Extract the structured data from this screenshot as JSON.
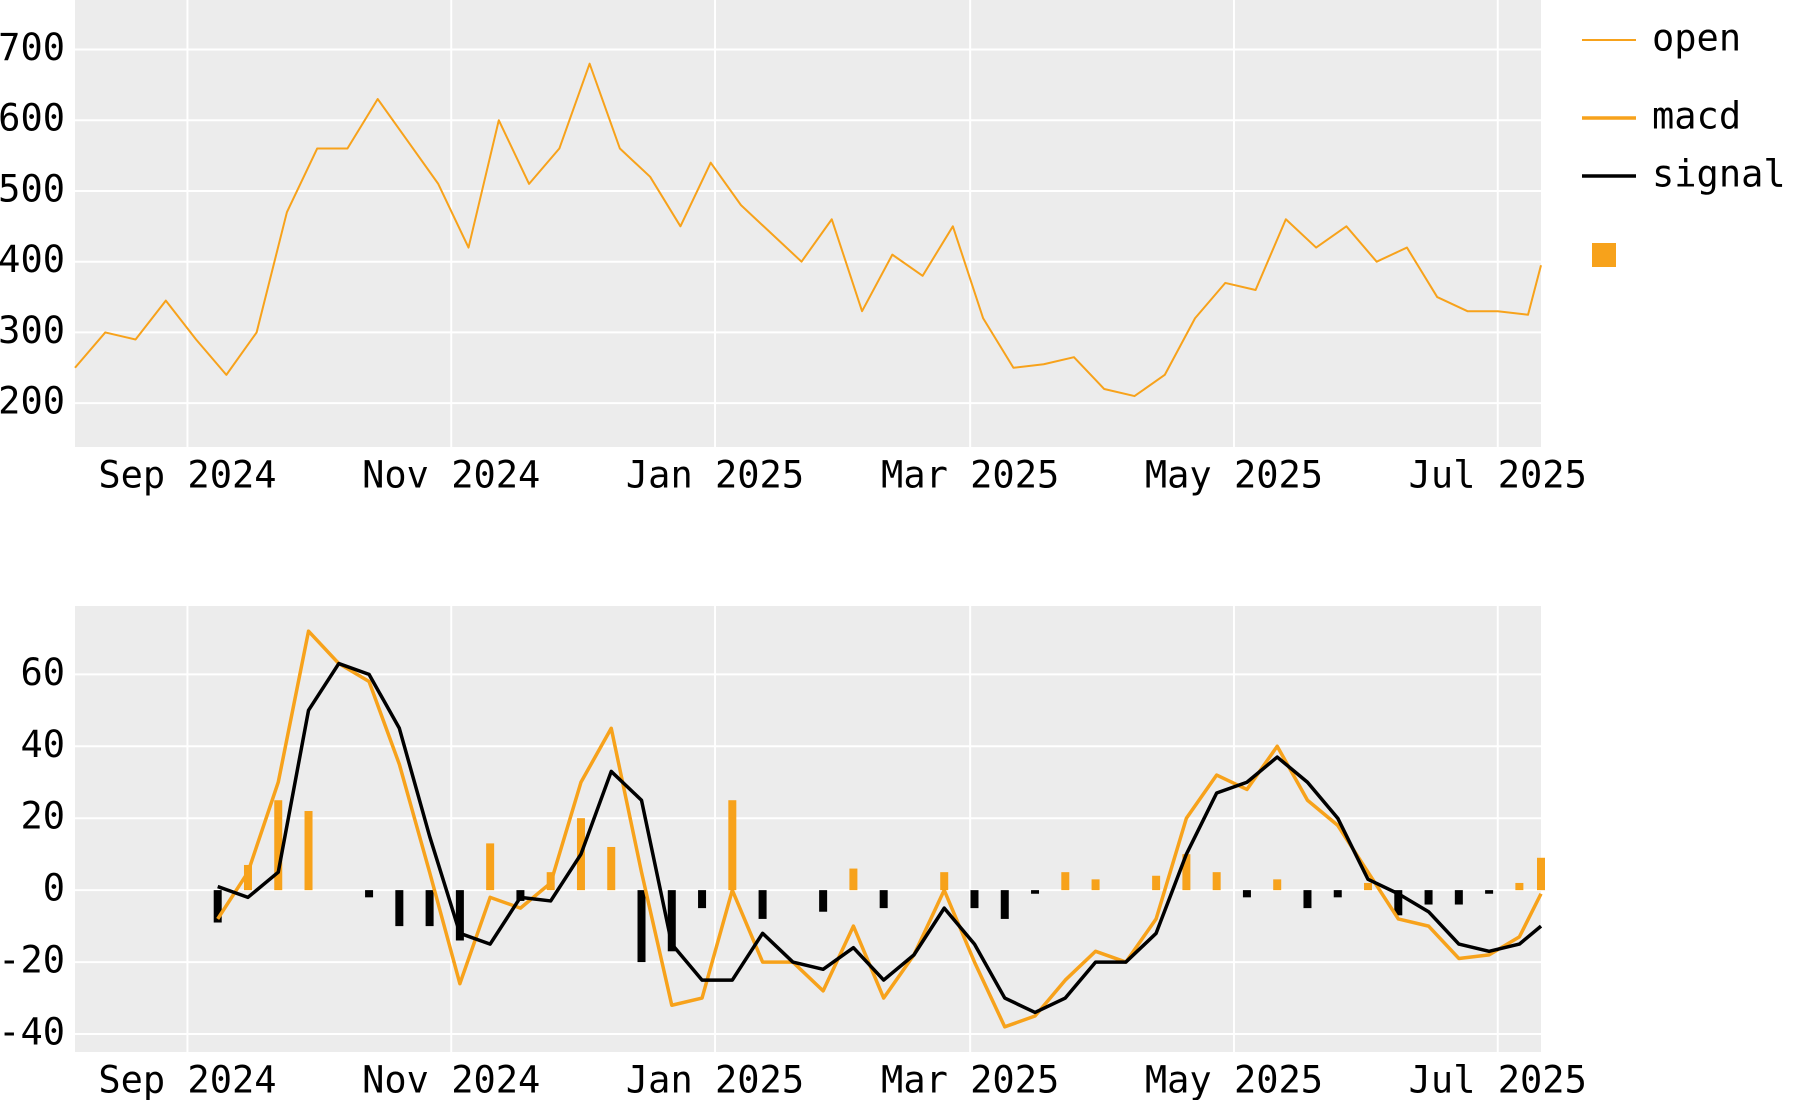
{
  "chart_data": [
    {
      "type": "line",
      "x": [
        "2024-08-06",
        "2024-08-13",
        "2024-08-20",
        "2024-08-27",
        "2024-09-03",
        "2024-09-10",
        "2024-09-17",
        "2024-09-24",
        "2024-10-01",
        "2024-10-08",
        "2024-10-15",
        "2024-10-22",
        "2024-10-29",
        "2024-11-05",
        "2024-11-12",
        "2024-11-19",
        "2024-11-26",
        "2024-12-03",
        "2024-12-10",
        "2024-12-17",
        "2024-12-24",
        "2024-12-31",
        "2025-01-07",
        "2025-01-14",
        "2025-01-21",
        "2025-01-28",
        "2025-02-04",
        "2025-02-11",
        "2025-02-18",
        "2025-02-25",
        "2025-03-04",
        "2025-03-11",
        "2025-03-18",
        "2025-03-25",
        "2025-04-01",
        "2025-04-08",
        "2025-04-15",
        "2025-04-22",
        "2025-04-29",
        "2025-05-06",
        "2025-05-13",
        "2025-05-20",
        "2025-05-27",
        "2025-06-03",
        "2025-06-10",
        "2025-06-17",
        "2025-06-24",
        "2025-07-01",
        "2025-07-08",
        "2025-07-11"
      ],
      "series": [
        {
          "name": "open",
          "color": "#f7a21b",
          "width": 2,
          "values": [
            250,
            300,
            290,
            345,
            290,
            240,
            300,
            470,
            560,
            560,
            630,
            570,
            510,
            420,
            600,
            510,
            560,
            680,
            560,
            520,
            450,
            540,
            480,
            440,
            400,
            460,
            330,
            410,
            380,
            450,
            320,
            250,
            255,
            265,
            220,
            210,
            240,
            320,
            370,
            360,
            460,
            420,
            450,
            400,
            420,
            350,
            330,
            330,
            325,
            395
          ]
        }
      ],
      "xlim": [
        "2024-08-06",
        "2025-07-11"
      ],
      "xticks": [
        {
          "value": "2024-09-01",
          "label": "Sep 2024"
        },
        {
          "value": "2024-11-01",
          "label": "Nov 2024"
        },
        {
          "value": "2025-01-01",
          "label": "Jan 2025"
        },
        {
          "value": "2025-03-01",
          "label": "Mar 2025"
        },
        {
          "value": "2025-05-01",
          "label": "May 2025"
        },
        {
          "value": "2025-07-01",
          "label": "Jul 2025"
        }
      ],
      "ylim": [
        138,
        770
      ],
      "yticks": [
        200,
        300,
        400,
        500,
        600,
        700
      ],
      "grid": true
    },
    {
      "type": "line",
      "x": [
        "2024-09-08",
        "2024-09-15",
        "2024-09-22",
        "2024-09-29",
        "2024-10-06",
        "2024-10-13",
        "2024-10-20",
        "2024-10-27",
        "2024-11-03",
        "2024-11-10",
        "2024-11-17",
        "2024-11-24",
        "2024-12-01",
        "2024-12-08",
        "2024-12-15",
        "2024-12-22",
        "2024-12-29",
        "2025-01-05",
        "2025-01-12",
        "2025-01-19",
        "2025-01-26",
        "2025-02-02",
        "2025-02-09",
        "2025-02-16",
        "2025-02-23",
        "2025-03-02",
        "2025-03-09",
        "2025-03-16",
        "2025-03-23",
        "2025-03-30",
        "2025-04-06",
        "2025-04-13",
        "2025-04-20",
        "2025-04-27",
        "2025-05-04",
        "2025-05-11",
        "2025-05-18",
        "2025-05-25",
        "2025-06-01",
        "2025-06-08",
        "2025-06-15",
        "2025-06-22",
        "2025-06-29",
        "2025-07-06",
        "2025-07-11"
      ],
      "series": [
        {
          "name": "macd",
          "color": "#f7a21b",
          "width": 3.5,
          "values": [
            -8,
            5,
            30,
            72,
            63,
            58,
            35,
            5,
            -26,
            -2,
            -5,
            2,
            30,
            45,
            5,
            -32,
            -30,
            0,
            -20,
            -20,
            -28,
            -10,
            -30,
            -18,
            0,
            -20,
            -38,
            -35,
            -25,
            -17,
            -20,
            -8,
            20,
            32,
            28,
            40,
            25,
            18,
            5,
            -8,
            -10,
            -19,
            -18,
            -13,
            -1
          ]
        },
        {
          "name": "signal",
          "color": "#000000",
          "width": 3.5,
          "values": [
            1,
            -2,
            5,
            50,
            63,
            60,
            45,
            15,
            -12,
            -15,
            -2,
            -3,
            10,
            33,
            25,
            -15,
            -25,
            -25,
            -12,
            -20,
            -22,
            -16,
            -25,
            -18,
            -5,
            -15,
            -30,
            -34,
            -30,
            -20,
            -20,
            -12,
            10,
            27,
            30,
            37,
            30,
            20,
            3,
            -1,
            -6,
            -15,
            -17,
            -15,
            -10
          ]
        }
      ],
      "histogram": {
        "colors": {
          "positive": "#f7a21b",
          "negative": "#000000"
        },
        "values": [
          -9,
          7,
          25,
          22,
          0,
          -2,
          -10,
          -10,
          -14,
          13,
          -3,
          5,
          20,
          12,
          -20,
          -17,
          -5,
          25,
          -8,
          0,
          -6,
          6,
          -5,
          0,
          5,
          -5,
          -8,
          -1,
          5,
          3,
          0,
          4,
          10,
          5,
          -2,
          3,
          -5,
          -2,
          2,
          -7,
          -4,
          -4,
          -1,
          2,
          9
        ]
      },
      "xlim": [
        "2024-08-06",
        "2025-07-11"
      ],
      "xticks": [
        {
          "value": "2024-09-01",
          "label": "Sep 2024"
        },
        {
          "value": "2024-11-01",
          "label": "Nov 2024"
        },
        {
          "value": "2025-01-01",
          "label": "Jan 2025"
        },
        {
          "value": "2025-03-01",
          "label": "Mar 2025"
        },
        {
          "value": "2025-05-01",
          "label": "May 2025"
        },
        {
          "value": "2025-07-01",
          "label": "Jul 2025"
        }
      ],
      "ylim": [
        -45,
        79
      ],
      "yticks": [
        -40,
        -20,
        0,
        20,
        40,
        60
      ],
      "grid": true
    }
  ]
}
